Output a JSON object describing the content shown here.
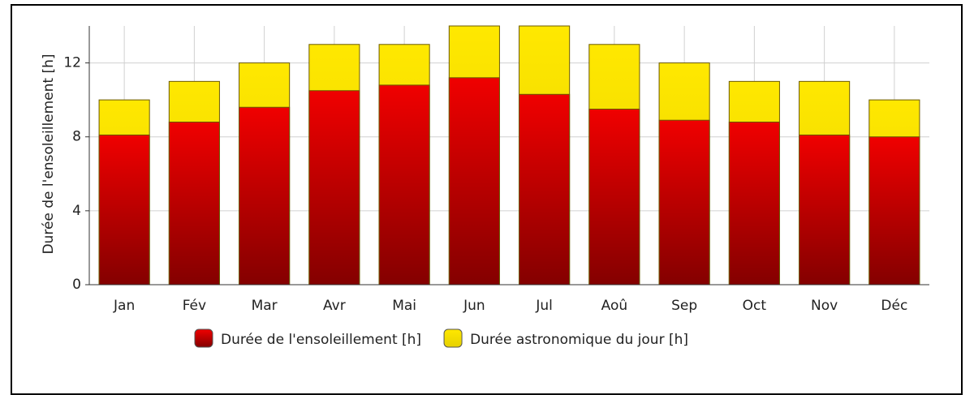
{
  "chart_data": {
    "type": "bar",
    "barmode": "overlay",
    "ylabel": "Durée de l'ensoleillement [h]",
    "categories": [
      "Jan",
      "Fév",
      "Mar",
      "Avr",
      "Mai",
      "Jun",
      "Jul",
      "Aoû",
      "Sep",
      "Oct",
      "Nov",
      "Déc"
    ],
    "series": [
      {
        "name": "Durée astronomique du jour [h]",
        "color": "#ffe800",
        "values": [
          10,
          11,
          12,
          13,
          13,
          14,
          14,
          13,
          12,
          11,
          11,
          10
        ]
      },
      {
        "name": "Durée de l'ensoleillement [h]",
        "color": "#f00000",
        "values": [
          8.1,
          8.8,
          9.6,
          10.5,
          10.8,
          11.2,
          10.3,
          9.5,
          8.9,
          8.8,
          8.1,
          8.0
        ]
      }
    ],
    "legend_order": [
      1,
      0
    ],
    "ylim": [
      0,
      14
    ],
    "yticks": [
      0,
      4,
      8,
      12
    ],
    "grid": true
  }
}
